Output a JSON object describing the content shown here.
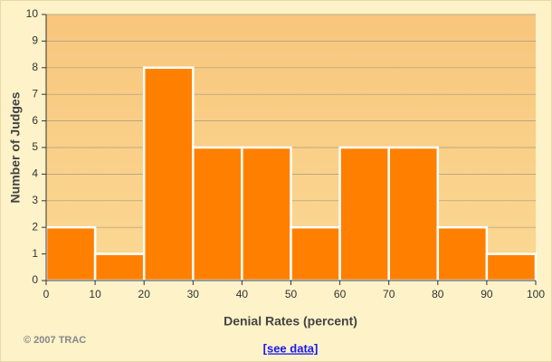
{
  "chart_data": {
    "type": "histogram",
    "xlabel": "Denial Rates (percent)",
    "ylabel": "Number of Judges",
    "bins": [
      0,
      10,
      20,
      30,
      40,
      50,
      60,
      70,
      80,
      90,
      100
    ],
    "values": [
      2,
      1,
      8,
      5,
      5,
      2,
      5,
      5,
      2,
      1
    ],
    "color": "#ff8000",
    "xlim": [
      0,
      100
    ],
    "xticks": [
      0,
      10,
      20,
      30,
      40,
      50,
      60,
      70,
      80,
      90,
      100
    ],
    "ylim": [
      0,
      10
    ],
    "yticks": [
      0,
      1,
      2,
      3,
      4,
      5,
      6,
      7,
      8,
      9,
      10
    ],
    "grid": true
  },
  "footer": {
    "copyright": "© 2007 TRAC",
    "link": "[see data]"
  }
}
